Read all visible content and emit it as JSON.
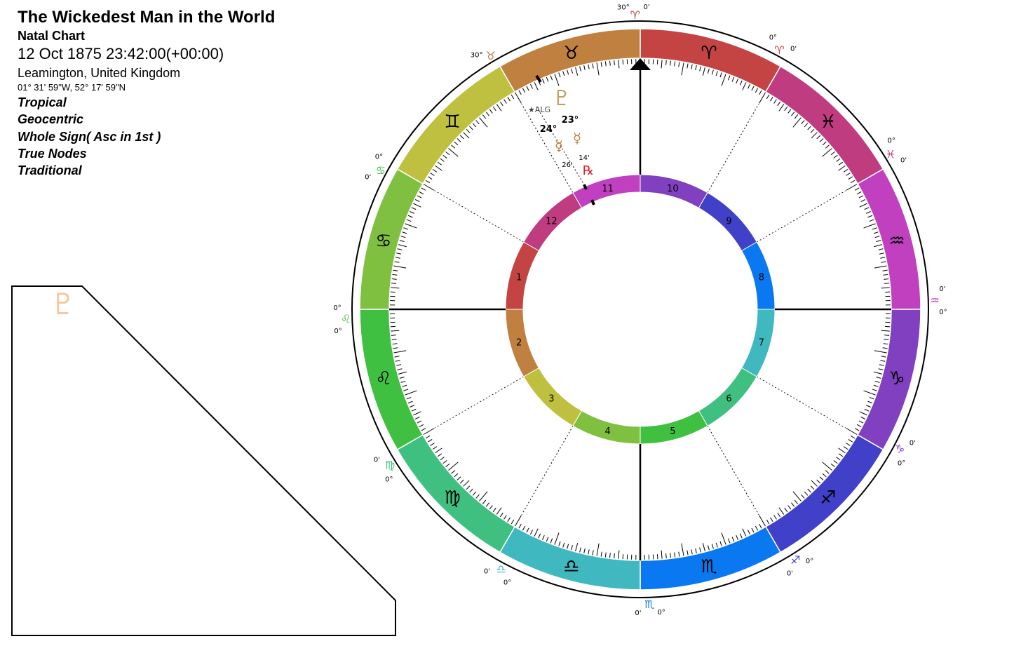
{
  "header": {
    "title": "The Wickedest Man in the World",
    "chart_type": "Natal Chart",
    "datetime": "12 Oct 1875 23:42:00(+00:00)",
    "location": "Leamington, United Kingdom",
    "coordinates": "01° 31' 59\"W, 52° 17' 59\"N",
    "options": [
      "Tropical",
      "Geocentric",
      "Whole Sign( Asc in 1st )",
      "True Nodes",
      "Traditional"
    ]
  },
  "aspect_grid": {
    "planet_icon": "pluto-glyph",
    "planet_symbol": "♇",
    "planet_color": "#f7c8a0"
  },
  "wheel": {
    "zodiac": [
      {
        "name": "aries",
        "glyph": "♈",
        "color": "#c44444",
        "glyph_color": "#000000"
      },
      {
        "name": "pisces",
        "glyph": "♓",
        "color": "#c03c80",
        "glyph_color": "#000000"
      },
      {
        "name": "aquarius",
        "glyph": "♒",
        "color": "#c040c0",
        "glyph_color": "#000000"
      },
      {
        "name": "capricorn",
        "glyph": "♑",
        "color": "#8040c0",
        "glyph_color": "#000000"
      },
      {
        "name": "sagittarius",
        "glyph": "♐",
        "color": "#4040c8",
        "glyph_color": "#000000"
      },
      {
        "name": "scorpio",
        "glyph": "♏",
        "color": "#0a78f0",
        "glyph_color": "#000000"
      },
      {
        "name": "libra",
        "glyph": "♎",
        "color": "#40b8c0",
        "glyph_color": "#000000"
      },
      {
        "name": "virgo",
        "glyph": "♍",
        "color": "#40c080",
        "glyph_color": "#000000"
      },
      {
        "name": "leo",
        "glyph": "♌",
        "color": "#40c040",
        "glyph_color": "#000000"
      },
      {
        "name": "cancer",
        "glyph": "♋",
        "color": "#80c040",
        "glyph_color": "#000000"
      },
      {
        "name": "gemini",
        "glyph": "♊",
        "color": "#c0c040",
        "glyph_color": "#000000"
      },
      {
        "name": "taurus",
        "glyph": "♉",
        "color": "#c08040",
        "glyph_color": "#000000"
      }
    ],
    "houses": [
      {
        "num": "10",
        "color": "#8040c0"
      },
      {
        "num": "9",
        "color": "#4040c8"
      },
      {
        "num": "8",
        "color": "#0a78f0"
      },
      {
        "num": "7",
        "color": "#40b8c0"
      },
      {
        "num": "6",
        "color": "#40c080"
      },
      {
        "num": "5",
        "color": "#40c040"
      },
      {
        "num": "4",
        "color": "#80c040"
      },
      {
        "num": "3",
        "color": "#c0c040"
      },
      {
        "num": "2",
        "color": "#c08040"
      },
      {
        "num": "1",
        "color": "#c44444"
      },
      {
        "num": "12",
        "color": "#c03c80"
      },
      {
        "num": "11",
        "color": "#c040c0"
      }
    ],
    "outer_labels": [
      {
        "sign": "aries",
        "glyph": "♈",
        "color": "#c44444",
        "a": "30°",
        "b": "0'"
      },
      {
        "sign": "aries",
        "glyph": "♈",
        "color": "#c44444",
        "a": "0°",
        "b": "0'"
      },
      {
        "sign": "pisces",
        "glyph": "♓",
        "color": "#c03c80",
        "a": "0°",
        "b": "0'"
      },
      {
        "sign": "aquarius",
        "glyph": "♒",
        "color": "#c040c0",
        "a": "0'",
        "b": "0°"
      },
      {
        "sign": "capricorn",
        "glyph": "♑",
        "color": "#8040c0",
        "a": "0'",
        "b": "0°"
      },
      {
        "sign": "sagittarius",
        "glyph": "♐",
        "color": "#4040c8",
        "a": "0°",
        "b": "0'"
      },
      {
        "sign": "scorpio",
        "glyph": "♏",
        "color": "#0a78f0",
        "a": "0°",
        "b": "0'"
      },
      {
        "sign": "libra",
        "glyph": "♎",
        "color": "#40b8c0",
        "a": "0°",
        "b": "0'"
      },
      {
        "sign": "virgo",
        "glyph": "♍",
        "color": "#40c080",
        "a": "0°",
        "b": "0'"
      },
      {
        "sign": "leo",
        "glyph": "♌",
        "color": "#40c040",
        "a": "0°",
        "b": "0°"
      },
      {
        "sign": "cancer",
        "glyph": "♋",
        "color": "#40c040",
        "a": "0'",
        "b": "0°"
      },
      {
        "sign": "taurus",
        "glyph": "♉",
        "color": "#c08040",
        "a": "30°",
        "b": ""
      }
    ],
    "placements": {
      "fixed_star": "★ALG",
      "pluto_glyph": "♇",
      "pluto_degree": "23°",
      "pluto_color": "#c0a060",
      "mercury_glyph": "☿",
      "mercury_degree": "24°",
      "mercury_minutes": "26'",
      "mercury_color": "#c08040",
      "venus_glyph": "☿",
      "venus_minutes": "14'",
      "venus_color": "#c08040",
      "retrograde": "℞",
      "retrograde_color": "#e02020"
    }
  }
}
